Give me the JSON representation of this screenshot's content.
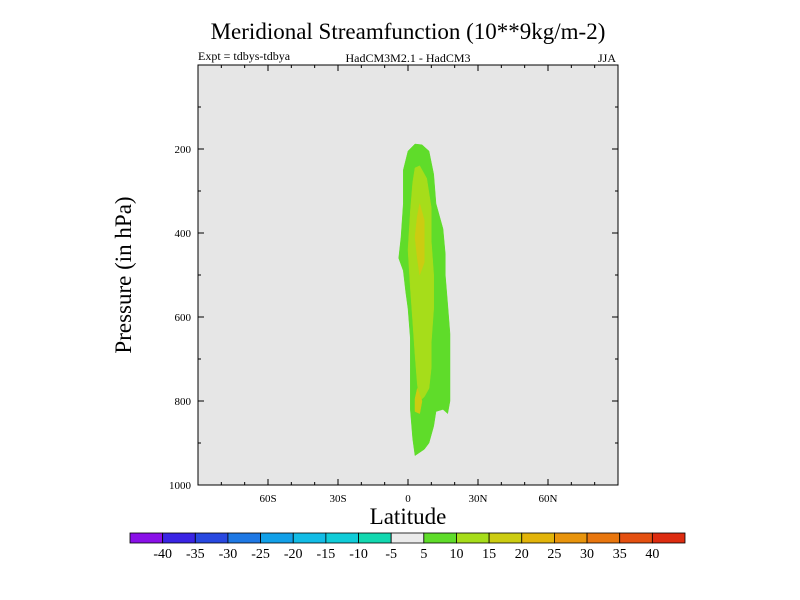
{
  "chart_data": {
    "type": "heatmap",
    "title": "Meridional Streamfunction (10**9kg/m-2)",
    "experiment_label": "Expt = tdbys-tdbya",
    "comparison_label": "HadCM3M2.1 - HadCM3",
    "season_label": "JJA",
    "xlabel": "Latitude",
    "ylabel": "Pressure (in hPa)",
    "xlim": [
      -90,
      90
    ],
    "ylim": [
      1000,
      0
    ],
    "x_ticks": [
      {
        "value": -60,
        "label": "60S"
      },
      {
        "value": -30,
        "label": "30S"
      },
      {
        "value": 0,
        "label": "0"
      },
      {
        "value": 30,
        "label": "30N"
      },
      {
        "value": 60,
        "label": "60N"
      }
    ],
    "y_ticks": [
      {
        "value": 200,
        "label": "200"
      },
      {
        "value": 400,
        "label": "400"
      },
      {
        "value": 600,
        "label": "600"
      },
      {
        "value": 800,
        "label": "800"
      },
      {
        "value": 1000,
        "label": "1000"
      }
    ],
    "background_color": "#e6e6e6",
    "contour_regions": [
      {
        "level": "5 to 10",
        "color": "#5fdc2a",
        "points": [
          [
            6,
            190
          ],
          [
            9,
            205
          ],
          [
            11,
            260
          ],
          [
            12,
            330
          ],
          [
            15,
            390
          ],
          [
            16,
            450
          ],
          [
            16,
            500
          ],
          [
            17,
            570
          ],
          [
            18,
            640
          ],
          [
            18,
            700
          ],
          [
            18,
            800
          ],
          [
            17,
            830
          ],
          [
            15,
            820
          ],
          [
            12,
            825
          ],
          [
            11,
            860
          ],
          [
            9,
            900
          ],
          [
            7,
            915
          ],
          [
            3,
            930
          ],
          [
            2,
            890
          ],
          [
            1,
            820
          ],
          [
            1,
            720
          ],
          [
            1,
            650
          ],
          [
            0,
            580
          ],
          [
            -1,
            540
          ],
          [
            -2,
            490
          ],
          [
            -4,
            460
          ],
          [
            -3,
            410
          ],
          [
            -2,
            330
          ],
          [
            -2,
            250
          ],
          [
            0,
            205
          ],
          [
            3,
            188
          ]
        ]
      },
      {
        "level": "10 to 15",
        "color": "#a6dd1a",
        "points": [
          [
            5,
            240
          ],
          [
            8,
            270
          ],
          [
            10,
            340
          ],
          [
            10,
            420
          ],
          [
            11,
            500
          ],
          [
            11,
            580
          ],
          [
            10,
            660
          ],
          [
            10,
            720
          ],
          [
            9,
            770
          ],
          [
            7,
            790
          ],
          [
            5,
            800
          ],
          [
            4,
            760
          ],
          [
            3,
            690
          ],
          [
            2,
            610
          ],
          [
            1,
            530
          ],
          [
            0,
            440
          ],
          [
            1,
            350
          ],
          [
            2,
            280
          ],
          [
            3,
            245
          ]
        ]
      },
      {
        "level": "15 to 20",
        "color": "#cccc11",
        "points": [
          [
            5,
            330
          ],
          [
            7,
            370
          ],
          [
            7,
            430
          ],
          [
            7,
            470
          ],
          [
            5,
            500
          ],
          [
            4,
            460
          ],
          [
            3,
            410
          ],
          [
            4,
            360
          ]
        ]
      },
      {
        "level": "15 to 20",
        "color": "#cccc11",
        "points": [
          [
            4,
            770
          ],
          [
            6,
            800
          ],
          [
            5,
            830
          ],
          [
            3,
            825
          ],
          [
            3,
            795
          ]
        ]
      }
    ],
    "colorbar": {
      "colors": [
        "#8a10e8",
        "#3a24e4",
        "#2848e0",
        "#1e78e4",
        "#12a0e8",
        "#12bce6",
        "#10ccd8",
        "#12d8b0",
        "#ebebeb",
        "#5fdc2a",
        "#a6dd1a",
        "#cccc11",
        "#e2b40a",
        "#e8940c",
        "#e8760e",
        "#e45010",
        "#dd2c10"
      ],
      "labels": [
        "-40",
        "-35",
        "-30",
        "-25",
        "-20",
        "-15",
        "-10",
        "-5",
        "5",
        "10",
        "15",
        "20",
        "25",
        "30",
        "35",
        "40"
      ]
    }
  }
}
